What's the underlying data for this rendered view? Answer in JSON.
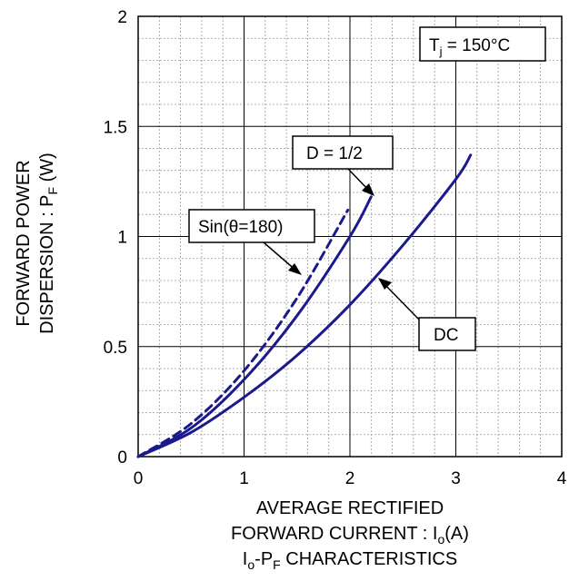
{
  "chart_data": {
    "type": "line",
    "title": "Io-PF CHARACTERISTICS",
    "xlabel": "AVERAGE RECTIFIED FORWARD CURRENT : Io(A)",
    "ylabel": "FORWARD POWER DISPERSION : PF (W)",
    "xlim": [
      0,
      4
    ],
    "ylim": [
      0,
      2
    ],
    "grid": true,
    "x_ticks": [
      "0",
      "1",
      "2",
      "3",
      "4"
    ],
    "y_ticks": [
      "0",
      "0.5",
      "1",
      "1.5",
      "2"
    ],
    "condition": "Tj = 150°C",
    "series": [
      {
        "name": "DC",
        "style": "solid",
        "x": [
          0,
          0.5,
          1.0,
          1.5,
          2.0,
          2.5,
          3.0,
          3.14
        ],
        "y": [
          0,
          0.11,
          0.27,
          0.46,
          0.69,
          0.96,
          1.26,
          1.37
        ]
      },
      {
        "name": "D = 1/2",
        "style": "solid",
        "x": [
          0,
          0.5,
          1.0,
          1.5,
          2.0,
          2.2
        ],
        "y": [
          0,
          0.13,
          0.35,
          0.64,
          1.0,
          1.18
        ]
      },
      {
        "name": "Sin(θ=180)",
        "style": "dashed",
        "x": [
          0,
          0.5,
          1.0,
          1.5,
          1.98
        ],
        "y": [
          0,
          0.15,
          0.39,
          0.72,
          1.12
        ]
      }
    ],
    "annotations": [
      "DC",
      "D = 1/2",
      "Sin(θ=180)"
    ],
    "colors": {
      "curve": "#1a1a8c",
      "grid_major": "#000000",
      "grid_minor": "#9a9a9a"
    }
  },
  "labels": {
    "ylabel_line1": "FORWARD POWER",
    "ylabel_line2_main": "DISPERSION : P",
    "ylabel_line2_sub": "F",
    "ylabel_line2_tail": " (W)",
    "xlabel_line1": "AVERAGE RECTIFIED",
    "xlabel_line2_main": "FORWARD CURRENT : I",
    "xlabel_line2_sub": "o",
    "xlabel_line2_tail": "(A)",
    "title_I": "I",
    "title_o": "o",
    "title_mid": "-P",
    "title_F": "F",
    "title_tail": " CHARACTERISTICS",
    "cond_main": "T",
    "cond_sub": "j",
    "cond_tail": " = 150°C",
    "ann_dc": "DC",
    "ann_d": "D = 1/2",
    "ann_sin": "Sin(θ=180)"
  }
}
